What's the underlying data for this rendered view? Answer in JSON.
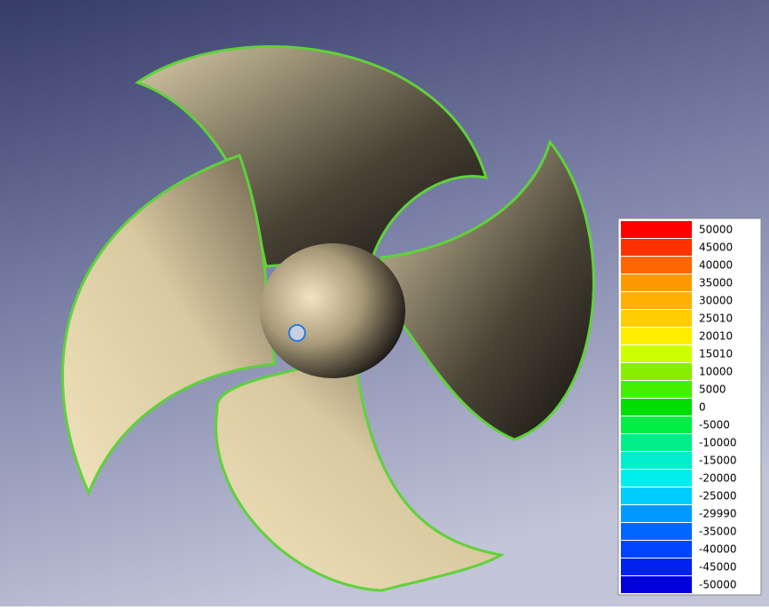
{
  "legend": {
    "entries": [
      {
        "label": "50000",
        "color": "#ff0000"
      },
      {
        "label": "45000",
        "color": "#ff3300"
      },
      {
        "label": "40000",
        "color": "#ff6600"
      },
      {
        "label": "35000",
        "color": "#ff9900"
      },
      {
        "label": "30000",
        "color": "#ffb000"
      },
      {
        "label": "25010",
        "color": "#ffcc00"
      },
      {
        "label": "20010",
        "color": "#ffee00"
      },
      {
        "label": "15010",
        "color": "#ccff00"
      },
      {
        "label": "10000",
        "color": "#88ee00"
      },
      {
        "label": "5000",
        "color": "#44ee00"
      },
      {
        "label": "0",
        "color": "#00dd00"
      },
      {
        "label": "-5000",
        "color": "#00ee44"
      },
      {
        "label": "-10000",
        "color": "#00ee88"
      },
      {
        "label": "-15000",
        "color": "#00eecc"
      },
      {
        "label": "-20000",
        "color": "#00eeee"
      },
      {
        "label": "-25000",
        "color": "#00ccff"
      },
      {
        "label": "-29990",
        "color": "#0099ff"
      },
      {
        "label": "-35000",
        "color": "#0066ff"
      },
      {
        "label": "-40000",
        "color": "#0044ff"
      },
      {
        "label": "-45000",
        "color": "#0022ee"
      },
      {
        "label": "-50000",
        "color": "#0000dd"
      }
    ]
  }
}
